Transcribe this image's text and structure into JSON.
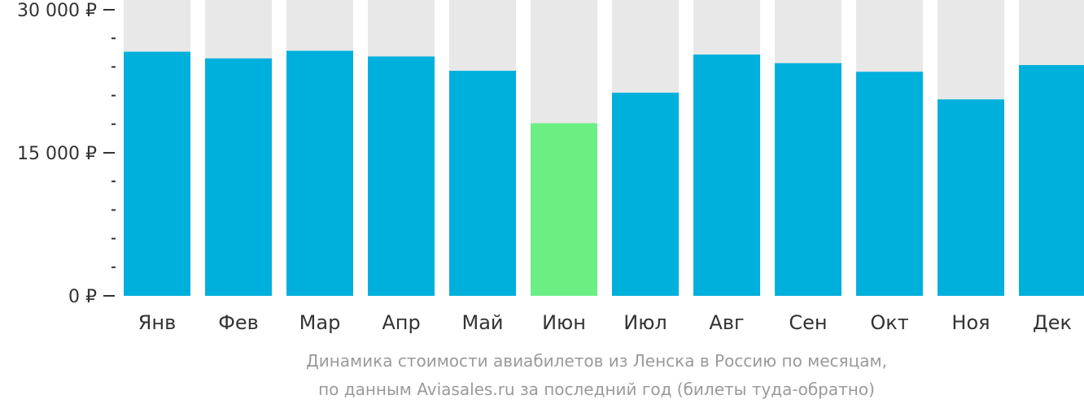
{
  "chart_data": {
    "type": "bar",
    "categories": [
      "Янв",
      "Фев",
      "Мар",
      "Апр",
      "Май",
      "Июн",
      "Июл",
      "Авг",
      "Сен",
      "Окт",
      "Ноя",
      "Дек"
    ],
    "values": [
      25600,
      24900,
      25700,
      25100,
      23600,
      18100,
      21300,
      25300,
      24400,
      23500,
      20600,
      24200
    ],
    "ylim": [
      0,
      30000
    ],
    "yticks": [
      {
        "value": 0,
        "label": "0 ₽"
      },
      {
        "value": 15000,
        "label": "15 000 ₽"
      },
      {
        "value": 30000,
        "label": "30 000 ₽"
      }
    ],
    "highlight_index": 5,
    "title": "",
    "xlabel": "",
    "ylabel": ""
  },
  "caption": {
    "line1": "Динамика стоимости авиабилетов из Ленска в Россию по месяцам,",
    "line2": "по данным Aviasales.ru за последний год (билеты туда-обратно)"
  },
  "colors": {
    "bar": "#00b0dc",
    "highlight": "#6bef85",
    "track": "#e8e8e8",
    "axis": "#333333"
  }
}
